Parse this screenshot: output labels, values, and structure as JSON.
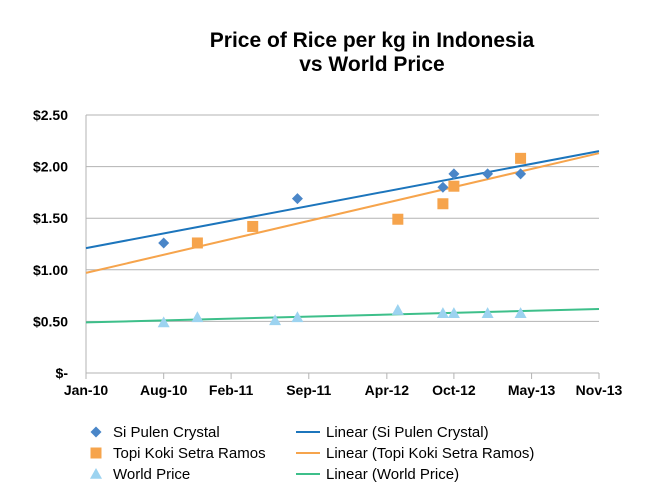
{
  "chart_data": {
    "type": "scatter",
    "title": "Price of Rice per kg in Indonesia",
    "subtitle": "vs World Price",
    "xlabel": "",
    "ylabel": "",
    "x_ticks": [
      "Jan-10",
      "Aug-10",
      "Feb-11",
      "Sep-11",
      "Apr-12",
      "Oct-12",
      "May-13",
      "Nov-13"
    ],
    "x_tick_dates": [
      "2010-01-01",
      "2010-08-01",
      "2011-02-01",
      "2011-09-01",
      "2012-04-01",
      "2012-10-01",
      "2013-05-01",
      "2013-11-01"
    ],
    "xlim": [
      "2010-01-01",
      "2013-11-01"
    ],
    "y_ticks": [
      "$-",
      "$0.50",
      "$1.00",
      "$1.50",
      "$2.00",
      "$2.50"
    ],
    "ylim": [
      0,
      2.5
    ],
    "grid": "horizontal",
    "legend_position": "bottom",
    "series": [
      {
        "name": "Si Pulen Crystal",
        "marker": "diamond",
        "color": "#4a86c8",
        "points": [
          {
            "x": "2010-08-01",
            "y": 1.26
          },
          {
            "x": "2011-08-01",
            "y": 1.69
          },
          {
            "x": "2012-09-01",
            "y": 1.8
          },
          {
            "x": "2012-10-01",
            "y": 1.93
          },
          {
            "x": "2013-01-01",
            "y": 1.93
          },
          {
            "x": "2013-04-01",
            "y": 1.93
          }
        ]
      },
      {
        "name": "Topi Koki Setra Ramos",
        "marker": "square",
        "color": "#f6a44c",
        "points": [
          {
            "x": "2010-11-01",
            "y": 1.26
          },
          {
            "x": "2011-04-01",
            "y": 1.42
          },
          {
            "x": "2012-05-01",
            "y": 1.49
          },
          {
            "x": "2012-09-01",
            "y": 1.64
          },
          {
            "x": "2012-10-01",
            "y": 1.81
          },
          {
            "x": "2013-04-01",
            "y": 2.08
          }
        ]
      },
      {
        "name": "World Price",
        "marker": "triangle",
        "color": "#9cd3f0",
        "points": [
          {
            "x": "2010-08-01",
            "y": 0.49
          },
          {
            "x": "2010-11-01",
            "y": 0.54
          },
          {
            "x": "2011-06-01",
            "y": 0.51
          },
          {
            "x": "2011-08-01",
            "y": 0.54
          },
          {
            "x": "2012-05-01",
            "y": 0.61
          },
          {
            "x": "2012-09-01",
            "y": 0.58
          },
          {
            "x": "2012-10-01",
            "y": 0.58
          },
          {
            "x": "2013-01-01",
            "y": 0.58
          },
          {
            "x": "2013-04-01",
            "y": 0.58
          }
        ]
      }
    ],
    "trendlines": [
      {
        "name": "Linear (Si Pulen Crystal)",
        "color": "#1c75bc",
        "start": {
          "x": "2010-01-01",
          "y": 1.21
        },
        "end": {
          "x": "2013-11-01",
          "y": 2.15
        }
      },
      {
        "name": "Linear (Topi Koki Setra Ramos)",
        "color": "#f6a44c",
        "start": {
          "x": "2010-01-01",
          "y": 0.97
        },
        "end": {
          "x": "2013-11-01",
          "y": 2.13
        }
      },
      {
        "name": "Linear (World Price)",
        "color": "#3dbf8a",
        "start": {
          "x": "2010-01-01",
          "y": 0.49
        },
        "end": {
          "x": "2013-11-01",
          "y": 0.62
        }
      }
    ]
  }
}
